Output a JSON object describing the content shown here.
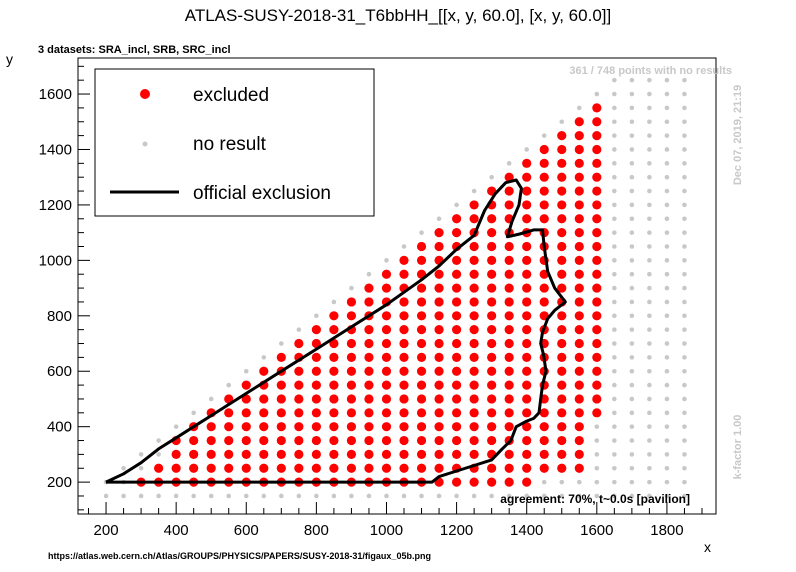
{
  "colors": {
    "excluded": "#ff0000",
    "no_result": "#c8c8c8",
    "official_exclusion": "#000000",
    "side_text": "#c8c8c8"
  },
  "chart_data": {
    "type": "scatter",
    "title": "ATLAS-SUSY-2018-31_T6bbHH_[[x, y, 60.0], [x, y, 60.0]]",
    "xlabel": "x",
    "ylabel": "y",
    "xlim": [
      120,
      1940
    ],
    "ylim": [
      85,
      1730
    ],
    "x_ticks": [
      200,
      400,
      600,
      800,
      1000,
      1200,
      1400,
      1600,
      1800
    ],
    "y_ticks": [
      200,
      400,
      600,
      800,
      1000,
      1200,
      1400,
      1600
    ],
    "grid": false,
    "datasets_label": "3 datasets: SRA_incl, SRB, SRC_incl",
    "points_info": "361 / 748 points with no results",
    "date_label": "Dec 07, 2019, 21:19",
    "kfactor_label": "k-factor 1.00",
    "agreement_label": "agreement: 70%, t~0.0s [pavilion]",
    "source_url": "https://atlas.web.cern.ch/Atlas/GROUPS/PHYSICS/PAPERS/SUSY-2018-31/figaux_05b.png",
    "legend": {
      "position": "top-left",
      "entries": [
        "excluded",
        "no result",
        "official exclusion"
      ]
    },
    "grid_points": {
      "x_start": 200,
      "x_step": 50,
      "x_count": 34,
      "y_start": 150,
      "y_step": 50,
      "y_count": 31,
      "x_max_rule": "x >= y, x <= 1850, y <= 1650"
    },
    "excluded_columns": [
      {
        "x": 300,
        "y": [
          200
        ]
      },
      {
        "x": 350,
        "y": [
          200,
          250
        ]
      },
      {
        "x": 400,
        "y": [
          200,
          250,
          300,
          350
        ]
      },
      {
        "x": 450,
        "y": [
          200,
          250,
          300,
          350,
          400
        ]
      },
      {
        "x": 500,
        "y": [
          200,
          250,
          300,
          350,
          400,
          450
        ]
      },
      {
        "x": 550,
        "y": [
          200,
          250,
          300,
          350,
          400,
          450,
          500
        ]
      },
      {
        "x": 600,
        "y": [
          200,
          250,
          300,
          350,
          400,
          450,
          500,
          550
        ]
      },
      {
        "x": 650,
        "y": [
          200,
          250,
          300,
          350,
          400,
          450,
          500,
          550,
          600
        ]
      },
      {
        "x": 700,
        "y": [
          200,
          250,
          300,
          350,
          400,
          450,
          500,
          550,
          600,
          650
        ]
      },
      {
        "x": 750,
        "y": [
          200,
          250,
          300,
          350,
          400,
          450,
          500,
          550,
          600,
          650,
          700
        ]
      },
      {
        "x": 800,
        "y": [
          200,
          250,
          300,
          350,
          400,
          450,
          500,
          550,
          600,
          650,
          700,
          750
        ]
      },
      {
        "x": 850,
        "y": [
          200,
          250,
          300,
          350,
          400,
          450,
          500,
          550,
          600,
          650,
          700,
          750,
          800
        ]
      },
      {
        "x": 900,
        "y": [
          200,
          250,
          300,
          350,
          400,
          450,
          500,
          550,
          600,
          650,
          700,
          750,
          800,
          850
        ]
      },
      {
        "x": 950,
        "y": [
          200,
          250,
          300,
          350,
          400,
          450,
          500,
          550,
          600,
          650,
          700,
          750,
          800,
          850,
          900
        ]
      },
      {
        "x": 1000,
        "y": [
          200,
          250,
          300,
          350,
          400,
          450,
          500,
          550,
          600,
          650,
          700,
          750,
          800,
          850,
          900,
          950
        ]
      },
      {
        "x": 1050,
        "y": [
          200,
          250,
          300,
          350,
          400,
          450,
          500,
          550,
          600,
          650,
          700,
          750,
          800,
          850,
          900,
          950,
          1000
        ]
      },
      {
        "x": 1100,
        "y": [
          200,
          250,
          300,
          350,
          400,
          450,
          500,
          550,
          600,
          650,
          700,
          750,
          800,
          850,
          900,
          950,
          1000,
          1050
        ]
      },
      {
        "x": 1150,
        "y": [
          200,
          250,
          300,
          350,
          400,
          450,
          500,
          550,
          600,
          650,
          700,
          750,
          800,
          850,
          900,
          950,
          1000,
          1050,
          1100
        ]
      },
      {
        "x": 1200,
        "y": [
          200,
          250,
          300,
          350,
          400,
          450,
          500,
          550,
          600,
          650,
          700,
          750,
          800,
          850,
          900,
          950,
          1000,
          1050,
          1100,
          1150
        ]
      },
      {
        "x": 1250,
        "y": [
          200,
          250,
          300,
          350,
          400,
          450,
          500,
          550,
          600,
          650,
          700,
          750,
          800,
          850,
          900,
          950,
          1000,
          1050,
          1100,
          1150,
          1200
        ]
      },
      {
        "x": 1300,
        "y": [
          200,
          250,
          300,
          350,
          400,
          450,
          500,
          550,
          600,
          650,
          700,
          750,
          800,
          850,
          900,
          950,
          1000,
          1050,
          1100,
          1150,
          1200,
          1250
        ]
      },
      {
        "x": 1350,
        "y": [
          200,
          250,
          300,
          350,
          400,
          450,
          500,
          550,
          600,
          650,
          700,
          750,
          800,
          850,
          900,
          950,
          1000,
          1050,
          1100,
          1150,
          1200,
          1250,
          1300
        ]
      },
      {
        "x": 1400,
        "y": [
          200,
          250,
          300,
          350,
          400,
          450,
          500,
          550,
          600,
          650,
          700,
          750,
          800,
          850,
          900,
          950,
          1000,
          1050,
          1100,
          1150,
          1200,
          1250,
          1300,
          1350
        ]
      },
      {
        "x": 1450,
        "y": [
          250,
          300,
          350,
          400,
          450,
          500,
          550,
          600,
          650,
          700,
          750,
          800,
          850,
          900,
          950,
          1000,
          1050,
          1100,
          1150,
          1200,
          1250,
          1300,
          1350,
          1400
        ]
      },
      {
        "x": 1500,
        "y": [
          250,
          300,
          350,
          400,
          450,
          500,
          550,
          600,
          650,
          700,
          750,
          800,
          850,
          900,
          950,
          1000,
          1050,
          1100,
          1150,
          1200,
          1250,
          1300,
          1350,
          1400,
          1450
        ]
      },
      {
        "x": 1550,
        "y": [
          250,
          300,
          350,
          400,
          450,
          500,
          550,
          600,
          650,
          700,
          750,
          800,
          850,
          900,
          950,
          1000,
          1050,
          1100,
          1150,
          1200,
          1250,
          1300,
          1350,
          1400,
          1450,
          1500
        ]
      },
      {
        "x": 1600,
        "y": [
          450,
          500,
          550,
          600,
          650,
          700,
          750,
          800,
          850,
          900,
          950,
          1000,
          1050,
          1100,
          1150,
          1200,
          1250,
          1300,
          1350,
          1400,
          1450,
          1500,
          1550
        ]
      }
    ],
    "official_exclusion_curve": [
      [
        200,
        200
      ],
      [
        250,
        230
      ],
      [
        300,
        270
      ],
      [
        350,
        320
      ],
      [
        400,
        360
      ],
      [
        450,
        400
      ],
      [
        500,
        440
      ],
      [
        550,
        480
      ],
      [
        600,
        520
      ],
      [
        700,
        600
      ],
      [
        800,
        680
      ],
      [
        900,
        760
      ],
      [
        1000,
        840
      ],
      [
        1100,
        930
      ],
      [
        1150,
        980
      ],
      [
        1200,
        1040
      ],
      [
        1250,
        1090
      ],
      [
        1280,
        1180
      ],
      [
        1310,
        1240
      ],
      [
        1340,
        1280
      ],
      [
        1370,
        1290
      ],
      [
        1385,
        1260
      ],
      [
        1378,
        1200
      ],
      [
        1358,
        1140
      ],
      [
        1345,
        1085
      ],
      [
        1380,
        1095
      ],
      [
        1420,
        1110
      ],
      [
        1445,
        1110
      ],
      [
        1450,
        1050
      ],
      [
        1460,
        960
      ],
      [
        1480,
        900
      ],
      [
        1510,
        850
      ],
      [
        1480,
        820
      ],
      [
        1460,
        790
      ],
      [
        1445,
        740
      ],
      [
        1440,
        700
      ],
      [
        1448,
        660
      ],
      [
        1455,
        600
      ],
      [
        1445,
        550
      ],
      [
        1440,
        500
      ],
      [
        1435,
        450
      ],
      [
        1420,
        430
      ],
      [
        1400,
        420
      ],
      [
        1370,
        400
      ],
      [
        1355,
        350
      ],
      [
        1330,
        320
      ],
      [
        1300,
        280
      ],
      [
        1250,
        260
      ],
      [
        1200,
        240
      ],
      [
        1150,
        220
      ],
      [
        1130,
        200
      ],
      [
        200,
        200
      ]
    ]
  }
}
